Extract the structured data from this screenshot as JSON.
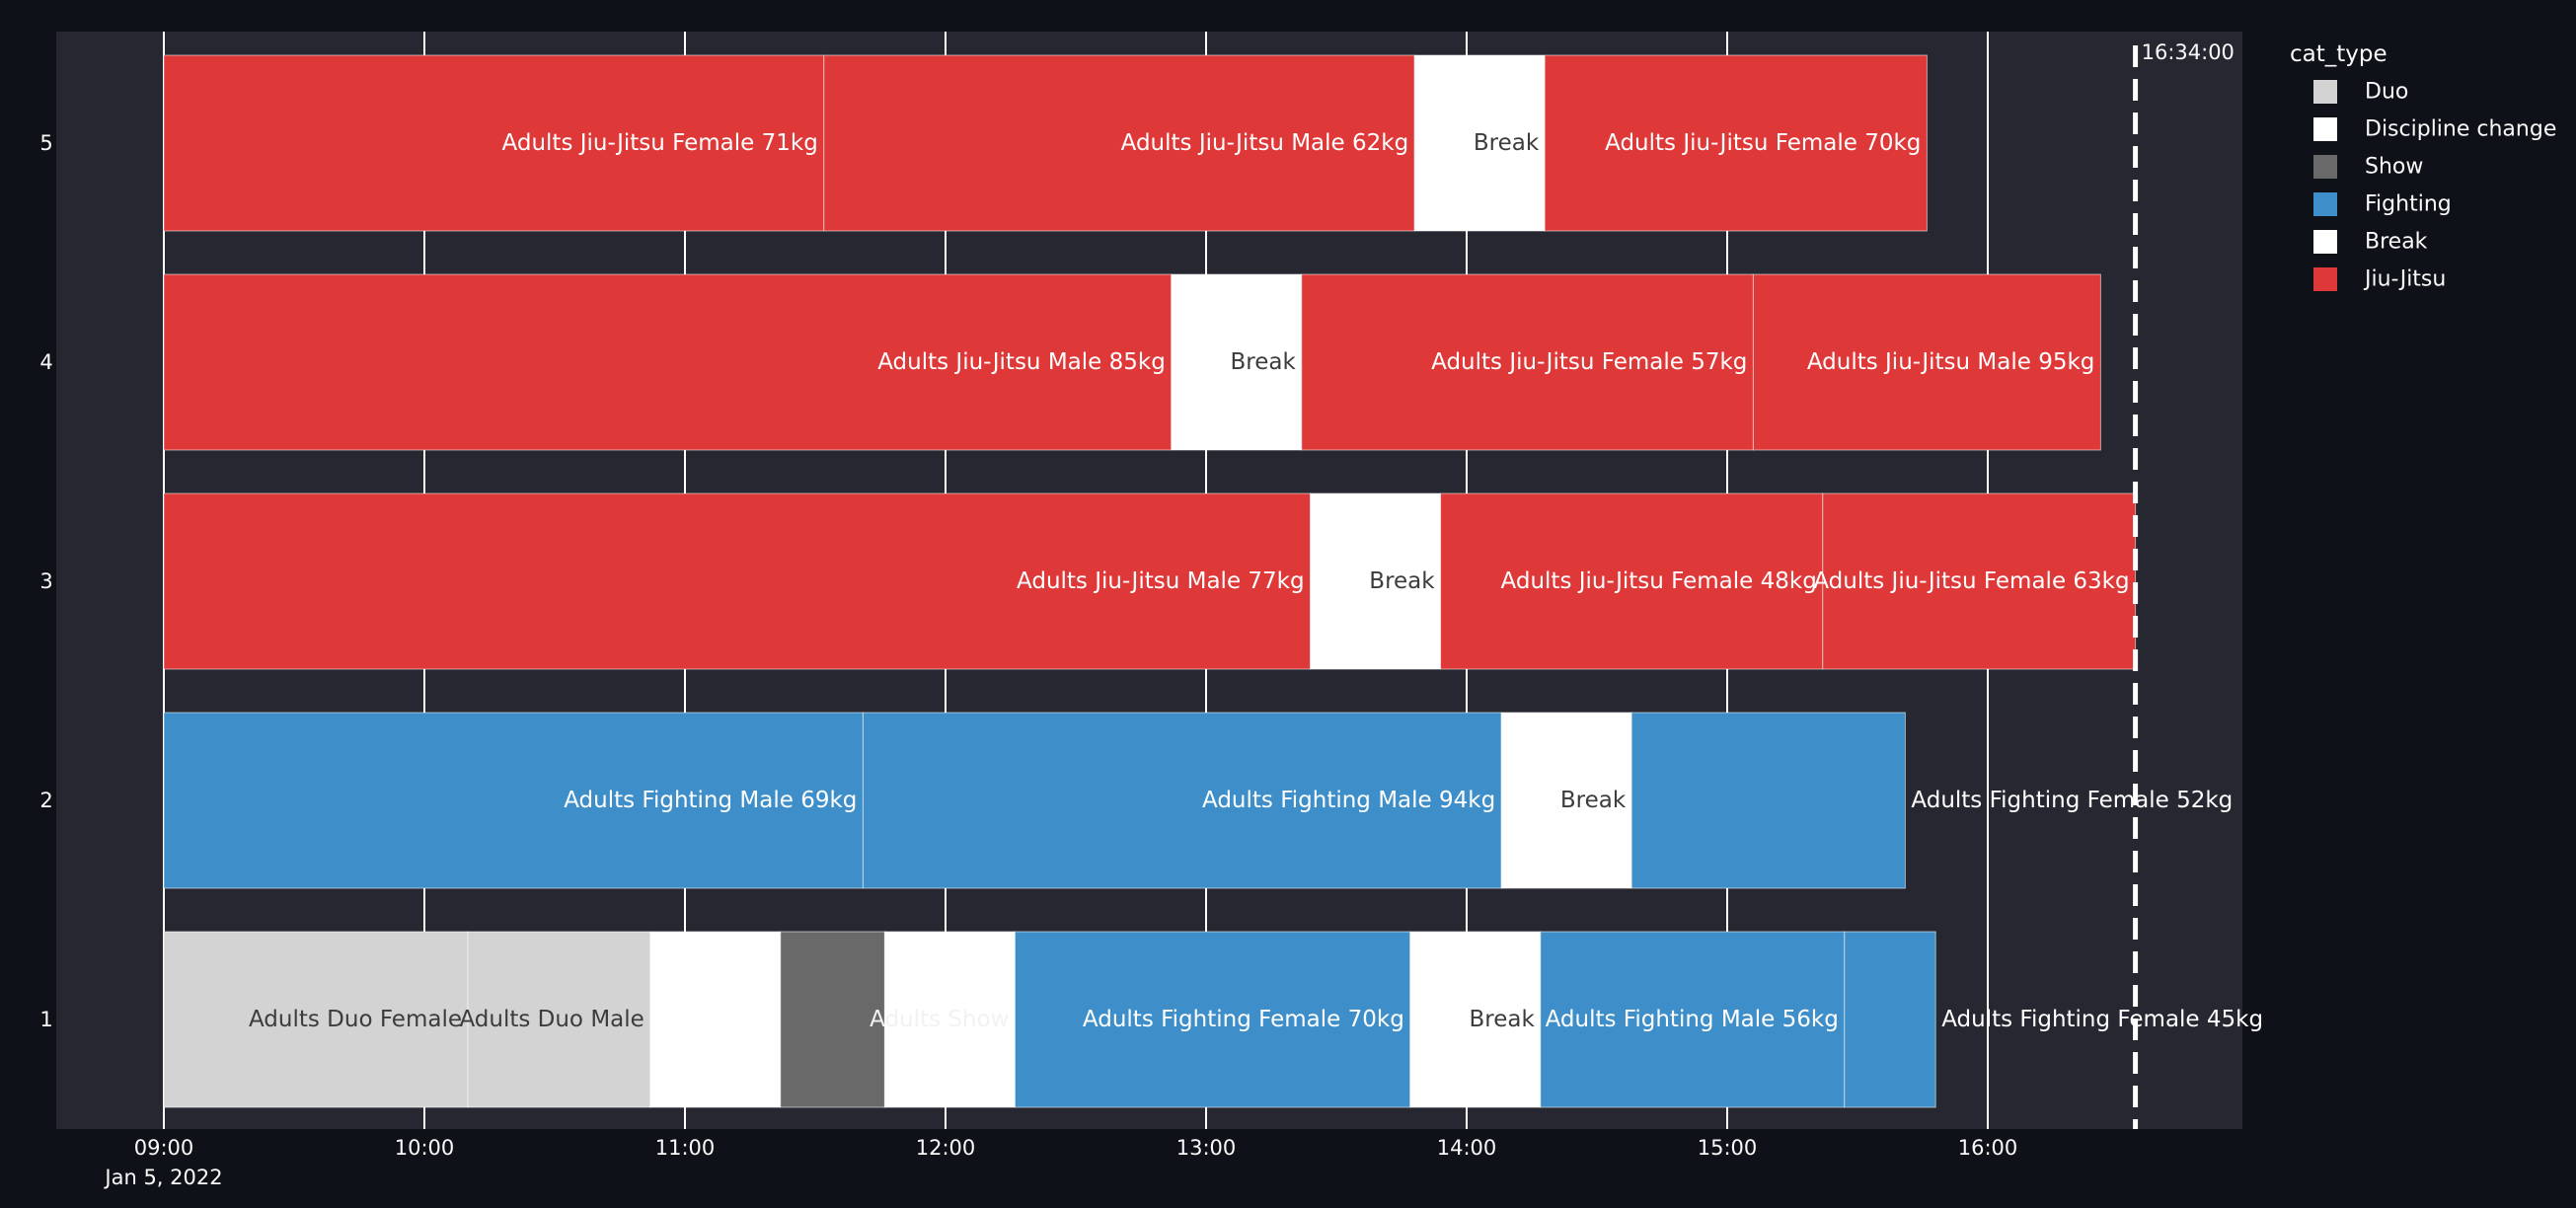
{
  "chart_data": {
    "type": "timeline",
    "x_axis": {
      "tick_labels": [
        "09:00",
        "10:00",
        "11:00",
        "12:00",
        "13:00",
        "14:00",
        "15:00",
        "16:00"
      ],
      "date_label": "Jan 5, 2022",
      "range": [
        "2022-01-05 08:35",
        "2022-01-05 16:55"
      ]
    },
    "y_axis": {
      "tick_labels": [
        "1",
        "2",
        "3",
        "4",
        "5"
      ]
    },
    "current_time_marker": {
      "time": "16:34",
      "label": "16:34:00",
      "style": "dashed",
      "color": "#ffffff"
    },
    "legend": {
      "title": "cat_type",
      "position": "right",
      "items": [
        {
          "name": "Duo",
          "color": "#d3d3d3"
        },
        {
          "name": "Discipline change",
          "color": "#ffffff"
        },
        {
          "name": "Show",
          "color": "#696969"
        },
        {
          "name": "Fighting",
          "color": "#3e8fc9"
        },
        {
          "name": "Break",
          "color": "#ffffff"
        },
        {
          "name": "Jiu-Jitsu",
          "color": "#df3838"
        }
      ]
    },
    "rows": [
      {
        "lane": "1",
        "tasks": [
          {
            "label": "Adults Duo Female",
            "type": "Duo",
            "start": "09:00",
            "end": "10:10",
            "color": "#d3d3d3",
            "text_color": "#3c3c3c",
            "text_outside": false
          },
          {
            "label": "Adults Duo Male",
            "type": "Duo",
            "start": "10:10",
            "end": "10:52",
            "color": "#d3d3d3",
            "text_color": "#3c3c3c",
            "text_outside": false
          },
          {
            "label": "",
            "type": "Discipline change",
            "start": "10:52",
            "end": "11:22",
            "color": "#ffffff",
            "text_color": "#ffffff",
            "text_outside": false
          },
          {
            "label": "",
            "type": "Show",
            "start": "11:22",
            "end": "11:46",
            "color": "#696969",
            "text_color": "#ffffff",
            "text_outside": false
          },
          {
            "label": "Adults Show",
            "type": "Break",
            "start": "11:46",
            "end": "12:16",
            "color": "#ffffff",
            "text_color": "#f2f2f2",
            "text_outside": false
          },
          {
            "label": "Adults Fighting Female 70kg",
            "type": "Fighting",
            "start": "12:16",
            "end": "13:47",
            "color": "#3e8fc9",
            "text_color": "#ffffff",
            "text_outside": false
          },
          {
            "label": "Break",
            "type": "Break",
            "start": "13:47",
            "end": "14:17",
            "color": "#ffffff",
            "text_color": "#3c3c3c",
            "text_outside": false
          },
          {
            "label": "Adults Fighting Male 56kg",
            "type": "Fighting",
            "start": "14:17",
            "end": "15:27",
            "color": "#3e8fc9",
            "text_color": "#ffffff",
            "text_outside": false
          },
          {
            "label": "Adults Fighting Female 45kg",
            "type": "Fighting",
            "start": "15:27",
            "end": "15:48",
            "color": "#3e8fc9",
            "text_color": "#ffffff",
            "text_outside": true
          }
        ]
      },
      {
        "lane": "2",
        "tasks": [
          {
            "label": "Adults Fighting Male 69kg",
            "type": "Fighting",
            "start": "09:00",
            "end": "11:41",
            "color": "#3e8fc9",
            "text_color": "#ffffff",
            "text_outside": false
          },
          {
            "label": "Adults Fighting Male 94kg",
            "type": "Fighting",
            "start": "11:41",
            "end": "14:08",
            "color": "#3e8fc9",
            "text_color": "#ffffff",
            "text_outside": false
          },
          {
            "label": "Break",
            "type": "Break",
            "start": "14:08",
            "end": "14:38",
            "color": "#ffffff",
            "text_color": "#3c3c3c",
            "text_outside": false
          },
          {
            "label": "Adults Fighting Female 52kg",
            "type": "Fighting",
            "start": "14:38",
            "end": "15:41",
            "color": "#3e8fc9",
            "text_color": "#ffffff",
            "text_outside": true
          }
        ]
      },
      {
        "lane": "3",
        "tasks": [
          {
            "label": "Adults Jiu-Jitsu Male 77kg",
            "type": "Jiu-Jitsu",
            "start": "09:00",
            "end": "13:24",
            "color": "#df3838",
            "text_color": "#ffffff",
            "text_outside": false
          },
          {
            "label": "Break",
            "type": "Break",
            "start": "13:24",
            "end": "13:54",
            "color": "#ffffff",
            "text_color": "#3c3c3c",
            "text_outside": false
          },
          {
            "label": "Adults Jiu-Jitsu Female 48kg",
            "type": "Jiu-Jitsu",
            "start": "13:54",
            "end": "15:22",
            "color": "#df3838",
            "text_color": "#ffffff",
            "text_outside": false
          },
          {
            "label": "Adults Jiu-Jitsu Female 63kg",
            "type": "Jiu-Jitsu",
            "start": "15:22",
            "end": "16:34",
            "color": "#df3838",
            "text_color": "#ffffff",
            "text_outside": false
          }
        ]
      },
      {
        "lane": "4",
        "tasks": [
          {
            "label": "Adults Jiu-Jitsu Male 85kg",
            "type": "Jiu-Jitsu",
            "start": "09:00",
            "end": "12:52",
            "color": "#df3838",
            "text_color": "#ffffff",
            "text_outside": false
          },
          {
            "label": "Break",
            "type": "Break",
            "start": "12:52",
            "end": "13:22",
            "color": "#ffffff",
            "text_color": "#3c3c3c",
            "text_outside": false
          },
          {
            "label": "Adults Jiu-Jitsu Female 57kg",
            "type": "Jiu-Jitsu",
            "start": "13:22",
            "end": "15:06",
            "color": "#df3838",
            "text_color": "#ffffff",
            "text_outside": false
          },
          {
            "label": "Adults Jiu-Jitsu Male 95kg",
            "type": "Jiu-Jitsu",
            "start": "15:06",
            "end": "16:26",
            "color": "#df3838",
            "text_color": "#ffffff",
            "text_outside": false
          }
        ]
      },
      {
        "lane": "5",
        "tasks": [
          {
            "label": "Adults Jiu-Jitsu Female 71kg",
            "type": "Jiu-Jitsu",
            "start": "09:00",
            "end": "11:32",
            "color": "#df3838",
            "text_color": "#ffffff",
            "text_outside": false
          },
          {
            "label": "Adults Jiu-Jitsu Male 62kg",
            "type": "Jiu-Jitsu",
            "start": "11:32",
            "end": "13:48",
            "color": "#df3838",
            "text_color": "#ffffff",
            "text_outside": false
          },
          {
            "label": "Break",
            "type": "Break",
            "start": "13:48",
            "end": "14:18",
            "color": "#ffffff",
            "text_color": "#3c3c3c",
            "text_outside": false
          },
          {
            "label": "Adults Jiu-Jitsu Female 70kg",
            "type": "Jiu-Jitsu",
            "start": "14:18",
            "end": "15:46",
            "color": "#df3838",
            "text_color": "#ffffff",
            "text_outside": false
          }
        ]
      }
    ],
    "colors": {
      "page_background": "#0e1117",
      "plot_background": "#262730",
      "gridline": "#ffffff",
      "axis_text": "#fafafa"
    }
  }
}
